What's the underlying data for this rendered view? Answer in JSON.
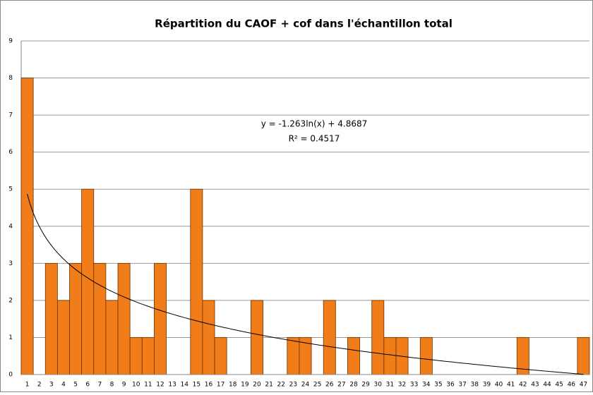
{
  "chart_data": {
    "type": "bar",
    "title": "Répartition du CAOF + cof dans l'échantillon total",
    "categories": [
      "1",
      "2",
      "3",
      "4",
      "5",
      "6",
      "7",
      "8",
      "9",
      "10",
      "11",
      "12",
      "13",
      "14",
      "15",
      "16",
      "17",
      "18",
      "19",
      "20",
      "21",
      "22",
      "23",
      "24",
      "25",
      "26",
      "27",
      "28",
      "29",
      "30",
      "31",
      "32",
      "33",
      "34",
      "35",
      "36",
      "37",
      "38",
      "39",
      "40",
      "41",
      "42",
      "43",
      "44",
      "45",
      "46",
      "47"
    ],
    "values": [
      8,
      0,
      3,
      2,
      3,
      5,
      3,
      2,
      3,
      1,
      1,
      3,
      0,
      0,
      5,
      2,
      1,
      0,
      0,
      2,
      0,
      0,
      1,
      1,
      0,
      2,
      0,
      1,
      0,
      2,
      1,
      1,
      0,
      1,
      0,
      0,
      0,
      0,
      0,
      0,
      0,
      1,
      0,
      0,
      0,
      0,
      1
    ],
    "color": "#f07c1a",
    "ylim": [
      0,
      9
    ],
    "yticks": [
      0,
      1,
      2,
      3,
      4,
      5,
      6,
      7,
      8,
      9
    ],
    "grid": true,
    "trendline": {
      "a": -1.263,
      "b": 4.8687,
      "label": "y = -1.263ln(x) + 4.8687",
      "r2_label": "R² = 0.4517"
    }
  }
}
